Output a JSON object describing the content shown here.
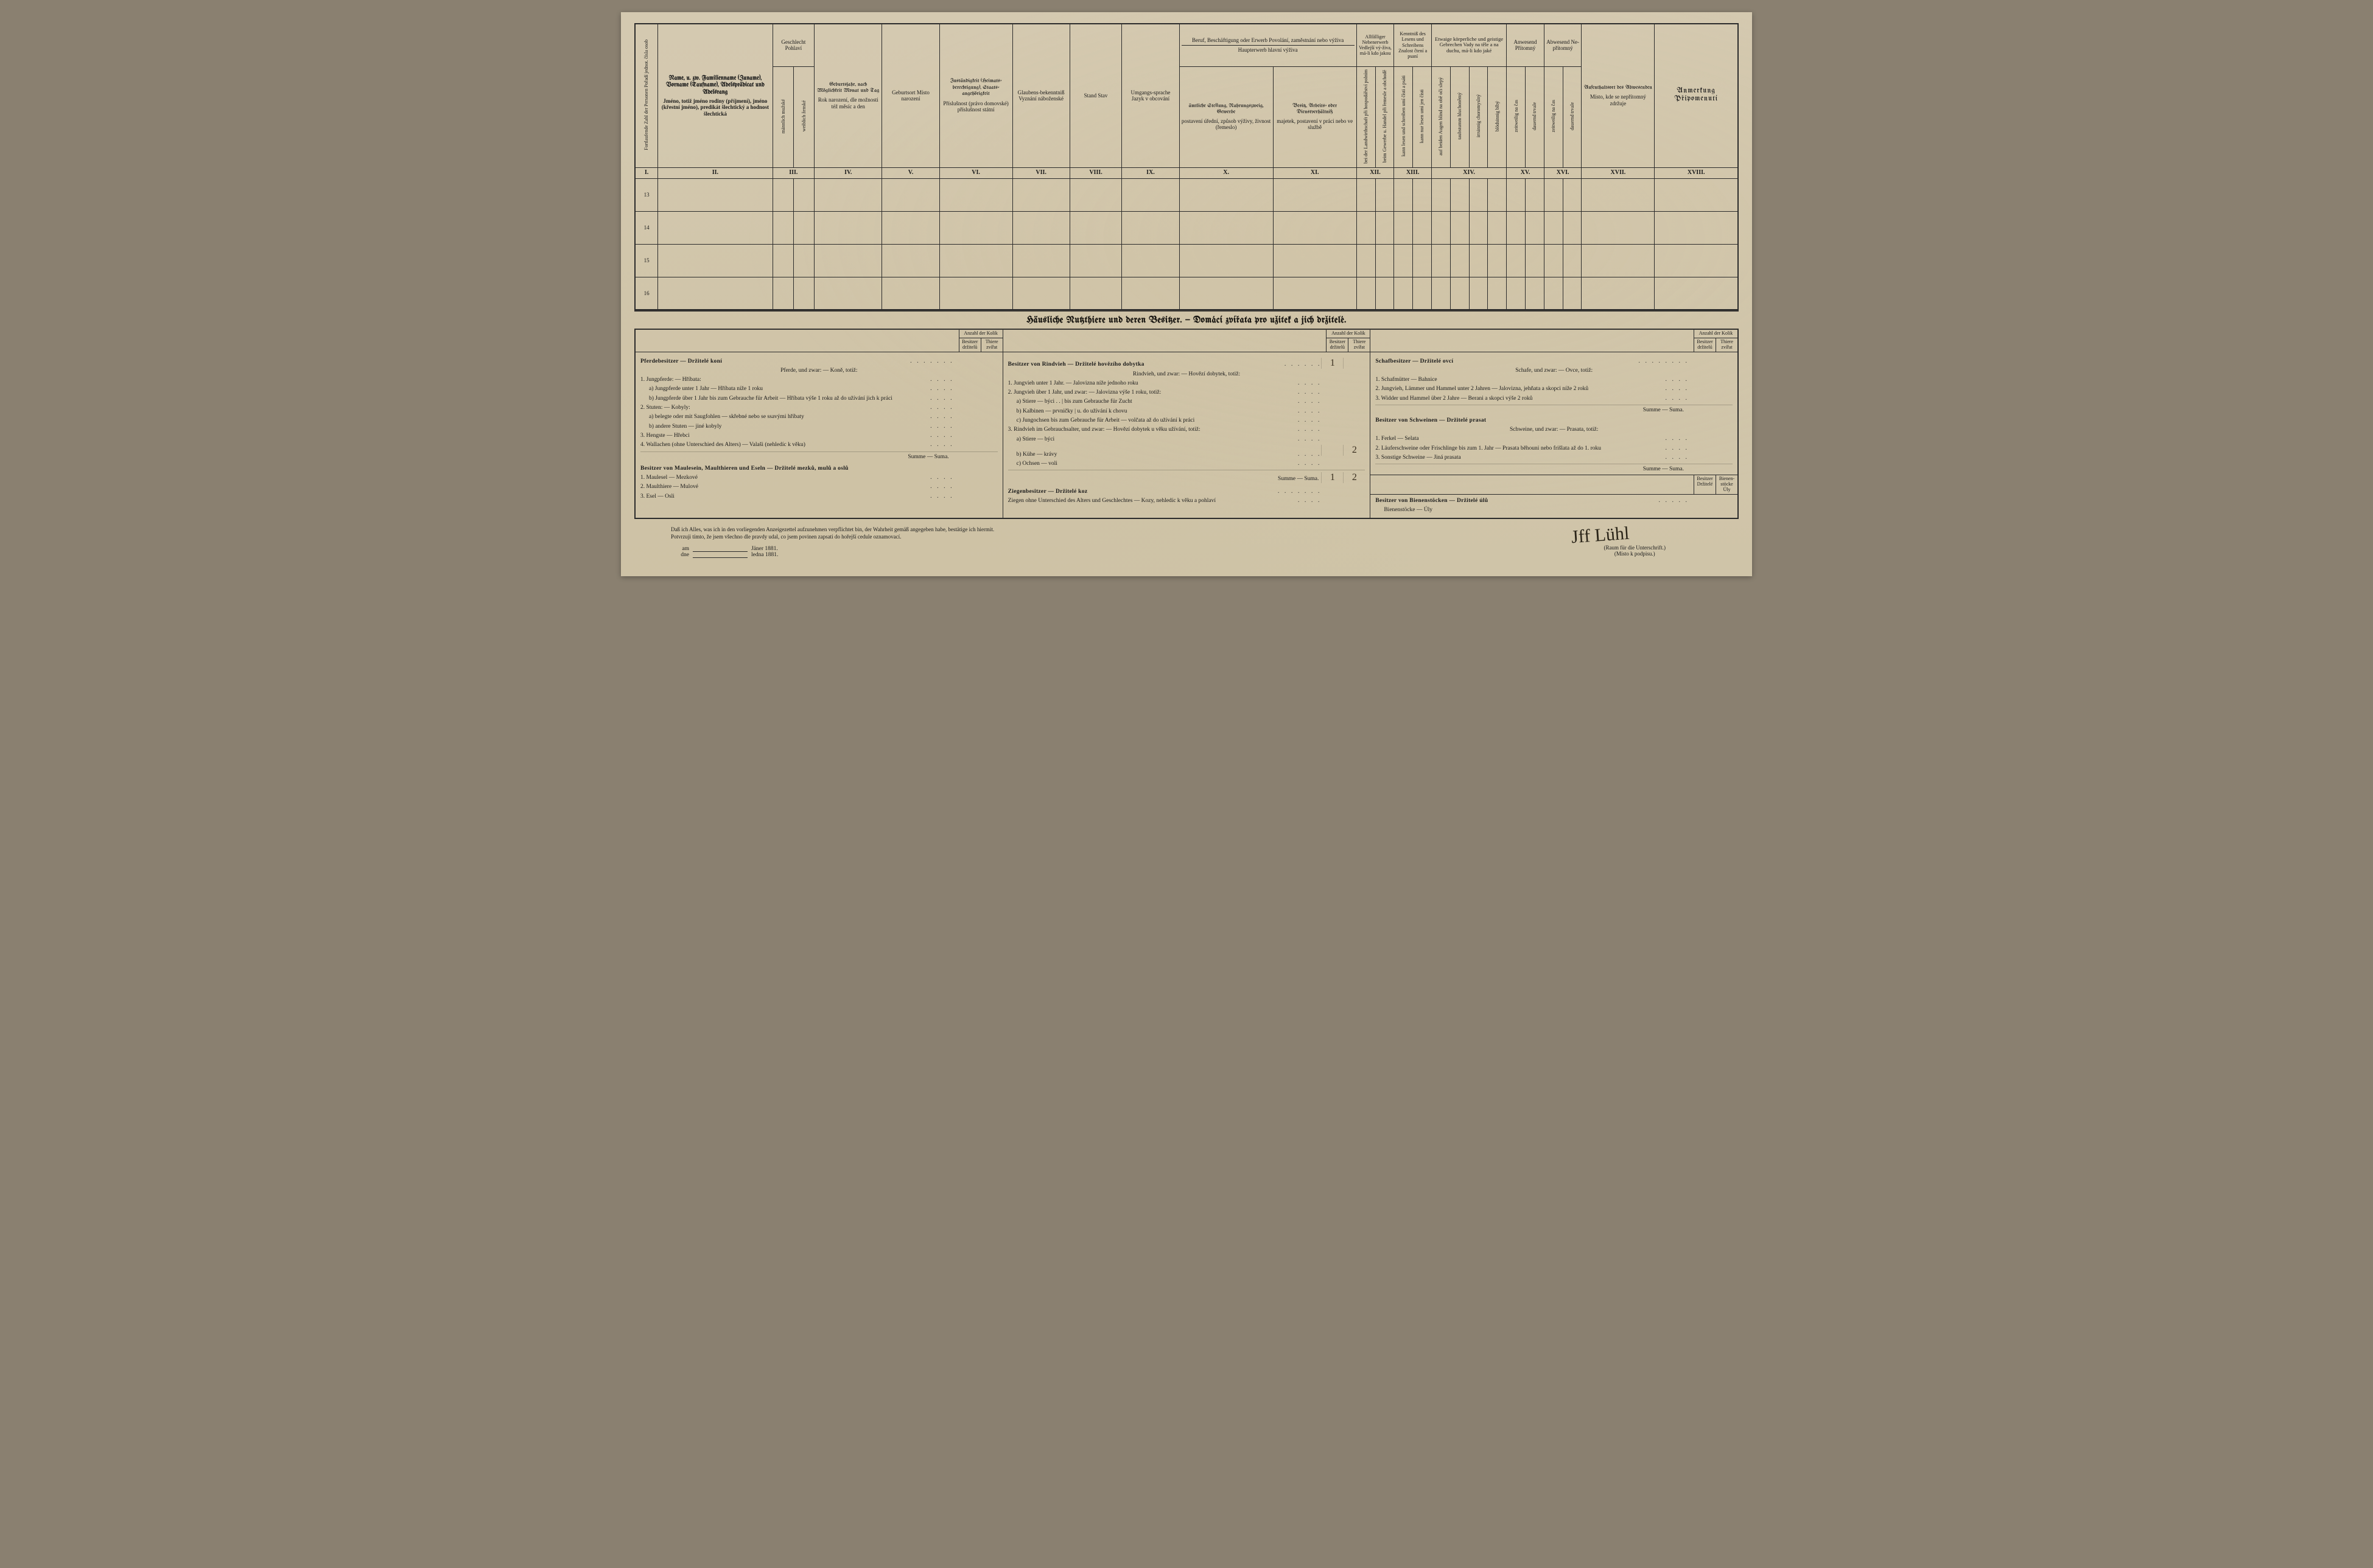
{
  "colors": {
    "page_bg_top": "#d4c9b0",
    "page_bg_bottom": "#cfc4a8",
    "border": "#2b2b2b",
    "ink": "#1a1a1a",
    "handwriting": "#3a3020"
  },
  "main_table": {
    "col_widths_pct": [
      2.2,
      11,
      2,
      2,
      6.5,
      5.5,
      7,
      5.5,
      5,
      5.5,
      9,
      8,
      2,
      2,
      2,
      2,
      2,
      2,
      2,
      2,
      2,
      2,
      2,
      2,
      2,
      2,
      7,
      8
    ],
    "headers": {
      "c1": "Fortlaufende Zahl der Personen\nPořadí jednot. čísla osob",
      "c2_de": "Name,\nu. zw. Familienname (Zuname), Vorname (Taufname), Adelsprädicat und Adelsrang",
      "c2_cz": "Jméno,\ntotiž jméno rodiny (příjmení), jméno (křestní jméno), predikát šlechtický a hodnost šlechtická",
      "c3_top": "Geschlecht\nPohlaví",
      "c3_sub1": "männlich\nmužské",
      "c3_sub2": "weiblich\nženské",
      "c4_de": "Geburtsjahr,\nnach Möglichkeit Monat und Tag",
      "c4_cz": "Rok narození, dle možnosti též měsíc a den",
      "c5": "Geburtsort\n\nMísto narození",
      "c6_de": "Zuständigkeit (Heimats-berechtigung), Staats-angehörigkeit",
      "c6_cz": "Příslušnost (právo domovské) příslušnost státní",
      "c7": "Glaubens-bekenntniß\n\nVyznání náboženské",
      "c8": "Stand\n\nStav",
      "c9": "Umgangs-sprache\n\nJazyk v obcování",
      "c10_top": "Beruf, Beschäftigung oder Erwerb\nPovolání, zaměstnání nebo výživa",
      "c10_mid": "Haupterwerb\nhlavní výživa",
      "c10_a_de": "ämtliche Stellung, Nahrungszweig, Gewerbe",
      "c10_a_cz": "postavení úřední, způsob výživy, živnost (řemeslo)",
      "c10_b_de": "Besitz, Arbeits- oder Dienstverhältniß",
      "c10_b_cz": "majetek, postavení v práci nebo ve službě",
      "c12_top": "Allfälliger Nebenerwerb\nVedlejší vý-živa, má-li kdo jakou",
      "c13_top": "Kenntniß des Lesens und Schreibens\nZnalost čtení a psaní",
      "c14_top": "Etwaige körperliche und geistige Gebrechen\nVady na těle a na duchu, má-li kdo jaké",
      "c15": "Anwesend\nPřítomný",
      "c16": "Abwesend\nNe-přítomný",
      "c17_de": "Aufenthaltsort des Abwesenden",
      "c17_cz": "Místo, kde se nepřítomný zdržuje",
      "c18": "Anmerkung\n\nPřipomenutí",
      "vert_labels": [
        "bei der Landwirthschaft\npři hospodářství polním",
        "beim Gewerbe u. Handel\npři řemesle a obchodě",
        "kann lesen und schreiben\numí čísti a psáti",
        "kann nur lesen\numí jen čísti",
        "auf beiden Augen blind\nna obě oči slepý",
        "taubstumm\nhluchoněmý",
        "irrsinnig\nchoromyslný",
        "blödsinnig\nblbý",
        "zeitweilig\nna čas",
        "dauernd\ntrvale",
        "zeitweilig\nna čas",
        "dauernd\ntrvale"
      ]
    },
    "roman": [
      "I.",
      "II.",
      "III.",
      "IV.",
      "V.",
      "VI.",
      "VII.",
      "VIII.",
      "IX.",
      "X.",
      "XI.",
      "XII.",
      "XIII.",
      "XIV.",
      "XV.",
      "XVI.",
      "XVII.",
      "XVIII."
    ],
    "row_numbers": [
      "13",
      "14",
      "15",
      "16"
    ]
  },
  "section_title": "Häusliche Nutzthiere und deren Besitzer. — Domácí zvířata pro užitek a jich držitelé.",
  "livestock": {
    "count_header": {
      "top": "Anzahl der\nKolik",
      "left": "Besitzer\ndržitelů",
      "right": "Thiere\nzvířat"
    },
    "col1": {
      "title": "Pferdebesitzer — Držitelé koní",
      "sub": "Pferde, und zwar: — Koně, totiž:",
      "lines": [
        "1. Jungpferde: — Hříbata:",
        "a) Jungpferde unter 1 Jahr — Hříbata níže 1 roku",
        "b) Jungpferde über 1 Jahr bis zum Gebrauche für Arbeit — Hříbata výše 1 roku až do užívání jich k práci",
        "2. Stuten: — Kobyly:",
        "a) belegte oder mit Saugfohlen — skřebné nebo se ssavými hříbaty",
        "b) andere Stuten — jiné kobyly",
        "3. Hengste — Hřebci",
        "4. Wallachen (ohne Unterschied des Alters) — Valaši (nehledíc k věku)"
      ],
      "sum": "Summe — Suma.",
      "title2": "Besitzer von Maulesein, Maulthieren und Eseln — Držitelé mezků, mulů a oslů",
      "lines2": [
        "1. Maulesel — Mezkové",
        "2. Maulthiere — Mulové",
        "3. Esel — Osli"
      ]
    },
    "col2": {
      "title": "Besitzer von Rindvieh — Držitelé hovězího dobytka",
      "title_vals": [
        "1",
        ""
      ],
      "sub": "Rindvieh, und zwar: — Hovězí dobytek, totiž:",
      "lines": [
        "1. Jungvieh unter 1 Jahr. — Jalovizna níže jednoho roku",
        "2. Jungvieh über 1 Jahr, und zwar: — Jalovizna výše 1 roku, totiž:",
        "a) Stiere — býci . . | bis zum Gebrauche für Zucht",
        "b) Kalbinen — prvničky | u. do užívání k chovu",
        "c) Jungochsen bis zum Gebrauche für Arbeit — volčata až do užívání k práci",
        "3. Rindvieh im Gebrauchsalter, und zwar: — Hovězí dobytek u věku užívání, totiž:",
        "a) Stiere — býci",
        "b) Kühe — krávy",
        "c) Ochsen — voli"
      ],
      "line_vals": {
        "7": [
          "",
          "2"
        ]
      },
      "sum": "Summe — Suma.",
      "sum_vals": [
        "1",
        "2"
      ],
      "title2": "Ziegenbesitzer — Držitelé koz",
      "lines2": [
        "Ziegen ohne Unterschied des Alters und Geschlechtes — Kozy, nehledíc k věku a pohlaví"
      ]
    },
    "col3": {
      "title": "Schafbesitzer — Držitelé ovcí",
      "sub": "Schafe, und zwar: — Ovce, totiž:",
      "lines": [
        "1. Schafmütter — Bahnice",
        "2. Jungvieh, Lämmer und Hammel unter 2 Jahren — Jalovizna, jehňata a skopci níže 2 roků",
        "3. Widder und Hammel über 2 Jahre — Berani a skopci výše 2 roků"
      ],
      "sum": "Summe — Suma.",
      "title2": "Besitzer von Schweinen — Držitelé prasat",
      "sub2": "Schweine, und zwar: — Prasata, totiž:",
      "lines2": [
        "1. Ferkel — Selata",
        "2. Läuferschweine oder Frischlinge bis zum 1. Jahr — Prasata běhouni nebo frišlata až do 1. roku",
        "3. Sonstige Schweine — Jiná prasata"
      ],
      "sum2": "Summe — Suma.",
      "mini_head": {
        "left": "Besitzer\nDržitelé",
        "right": "Bienen-stöcke\nÚly"
      },
      "title3": "Besitzer von Bienenstöcken — Držitelé úlů",
      "line3": "Bienenstöcke — Úly"
    }
  },
  "footer": {
    "de": "Daß ich Alles, was ich in den vorliegenden Anzeigezettel aufzunehmen verpflichtet bin, der Wahrheit gemäß angegeben habe, bestätige ich hiermit.",
    "cz": "Potvrzuji tímto, že jsem všechno dle pravdy udal, co jsem povinen zapsati do hořejší cedule oznamovací.",
    "date_de": "am _____ Jäner 1881.",
    "date_cz": "dne _____ ledna 1881.",
    "am": "am",
    "dne": "dne",
    "month_de": "Jäner 1881.",
    "month_cz": "ledna 1881.",
    "sig": "Jff Lühl",
    "sig_note_de": "(Raum für die Unterschrift.)",
    "sig_note_cz": "(Místo k podpisu.)"
  }
}
